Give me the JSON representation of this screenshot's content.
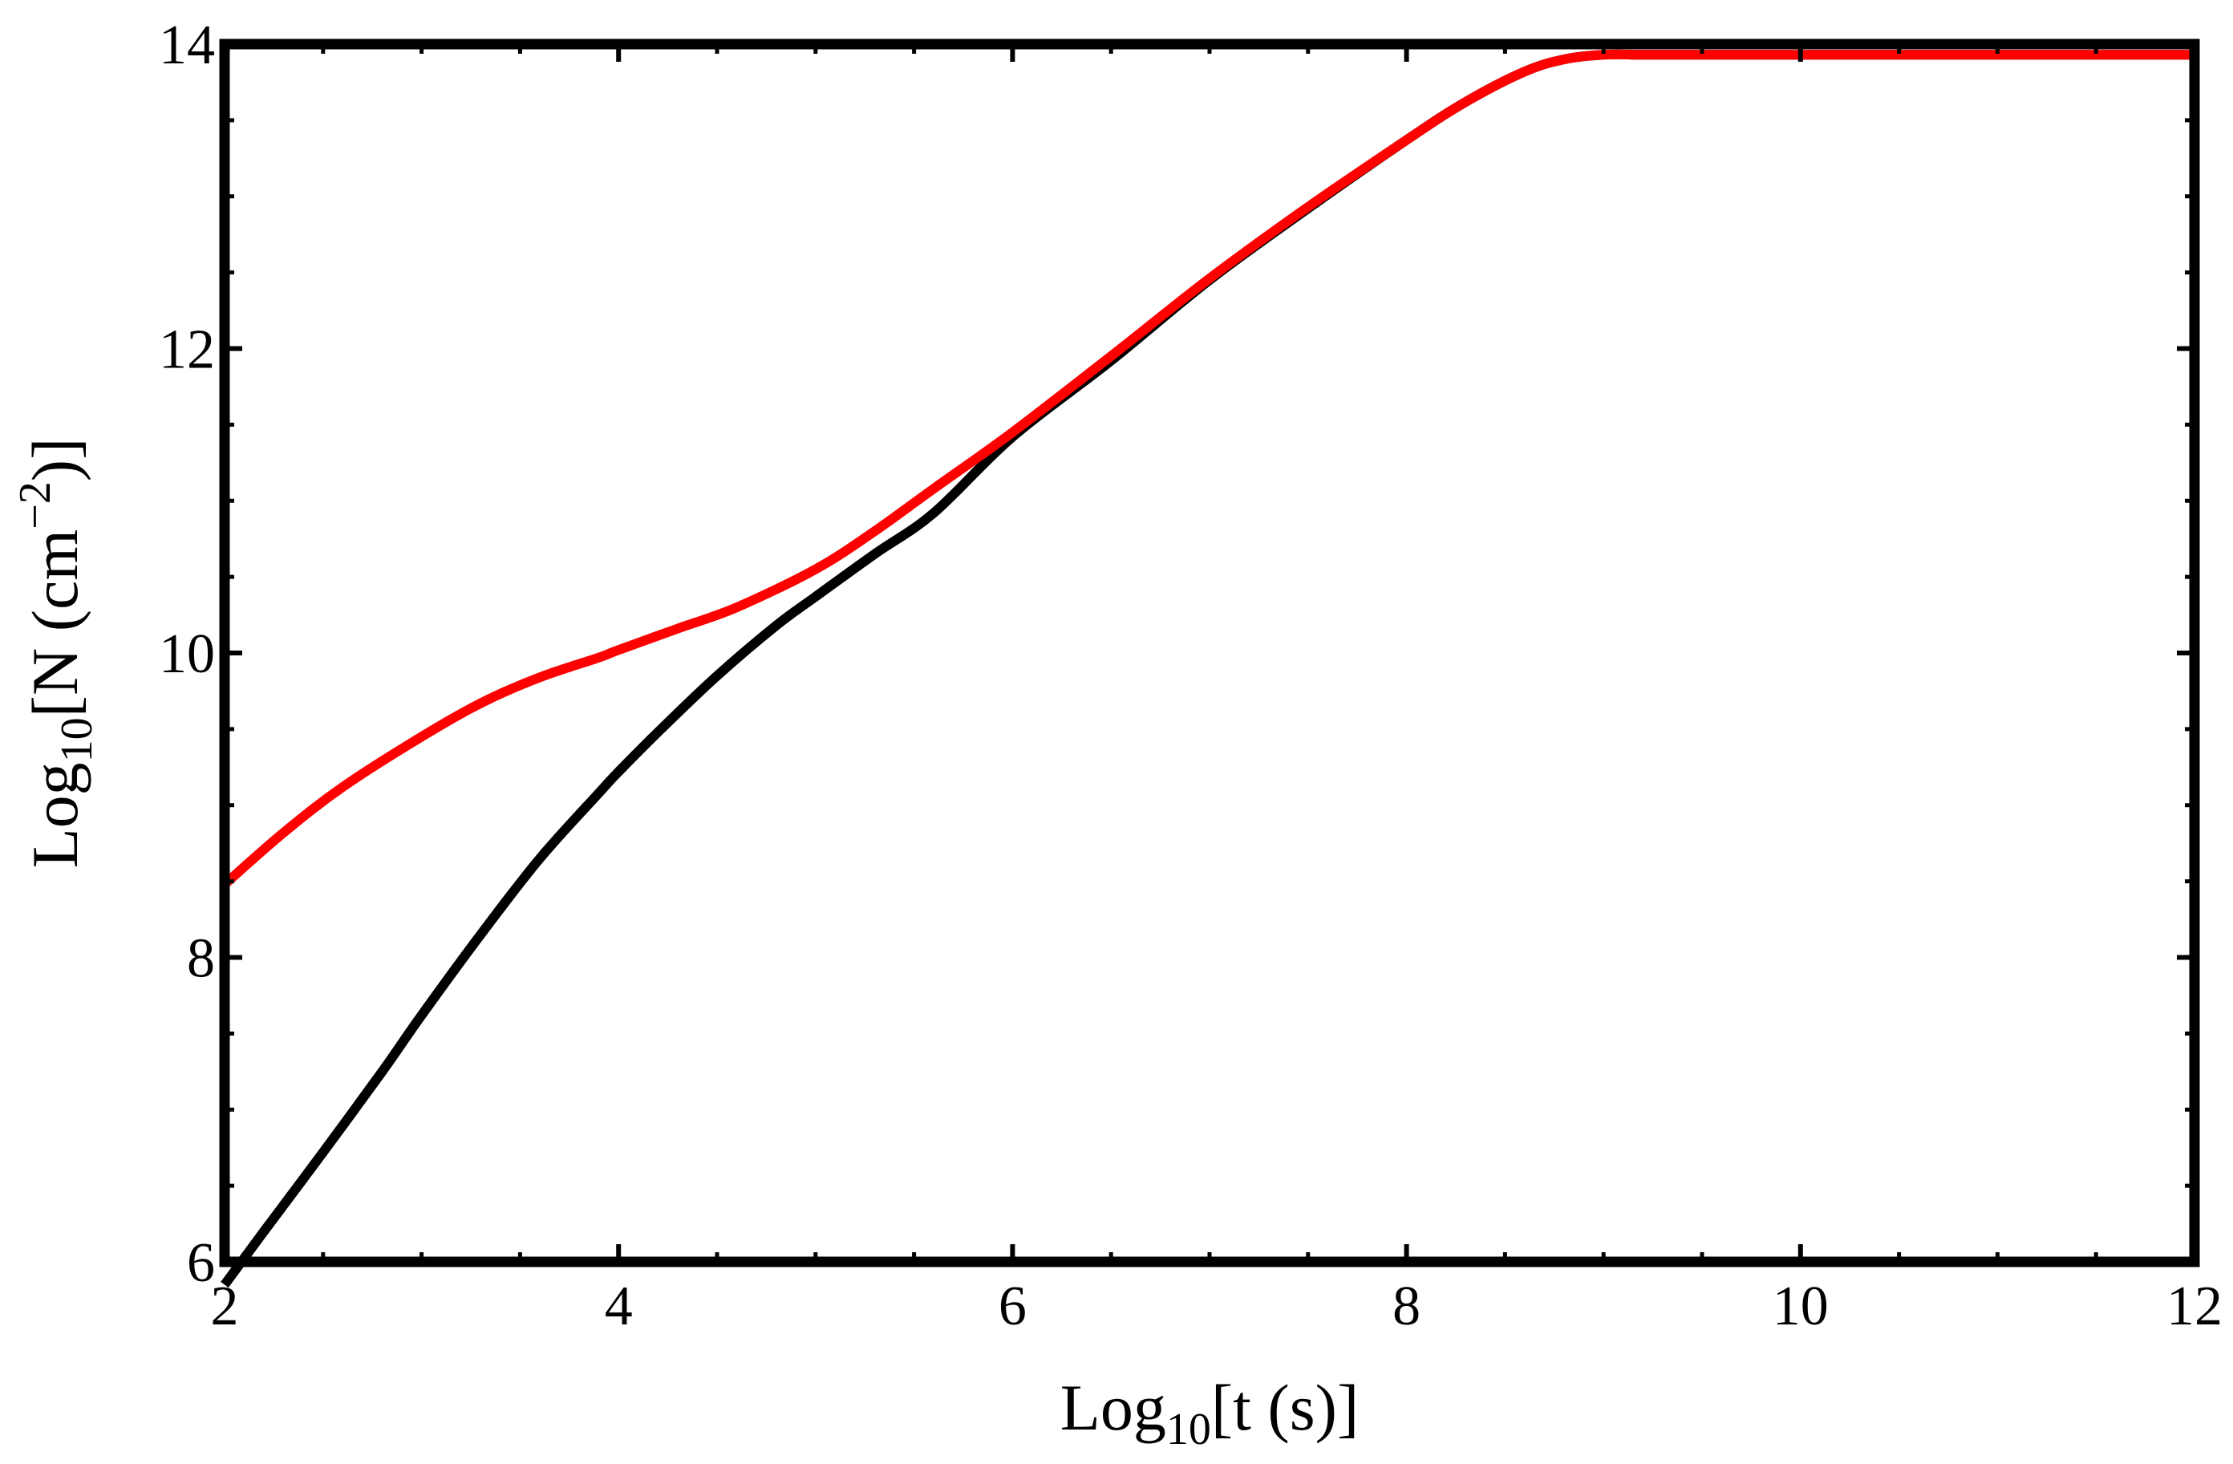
{
  "chart_data": {
    "type": "line",
    "xlabel": {
      "main": "Log",
      "sub": "10",
      "rest": "[t (s)]"
    },
    "ylabel": {
      "main": "Log",
      "sub": "10",
      "rest1": "[N (cm",
      "sup": "−2",
      "rest2": ")]"
    },
    "xlim": [
      2,
      12
    ],
    "ylim": [
      6,
      14
    ],
    "xticks": [
      2,
      4,
      6,
      8,
      10,
      12
    ],
    "yticks": [
      6,
      8,
      10,
      12,
      14
    ],
    "xticks_minor": [
      2.5,
      3,
      3.5,
      4.5,
      5,
      5.5,
      6.5,
      7,
      7.5,
      8.5,
      9,
      9.5,
      10.5,
      11,
      11.5
    ],
    "yticks_minor": [
      6.5,
      7,
      7.5,
      8.5,
      9,
      9.5,
      10.5,
      11,
      11.5,
      12.5,
      13,
      13.5
    ],
    "xtick_labels": [
      "2",
      "4",
      "6",
      "8",
      "10",
      "12"
    ],
    "ytick_labels": [
      "6",
      "8",
      "10",
      "12",
      "14"
    ],
    "grid": false,
    "series": [
      {
        "color": "#000000",
        "x": [
          2.0,
          2.2,
          2.5,
          2.8,
          3.0,
          3.3,
          3.6,
          3.9,
          4.0,
          4.2,
          4.5,
          4.8,
          5.0,
          5.3,
          5.6,
          6.0,
          6.5,
          7.0,
          7.5,
          8.0,
          8.3,
          8.6,
          8.8,
          9.0,
          9.2,
          9.5,
          10.0,
          11.0,
          12.0
        ],
        "y": [
          5.85,
          6.2,
          6.72,
          7.25,
          7.62,
          8.15,
          8.65,
          9.08,
          9.22,
          9.48,
          9.85,
          10.18,
          10.37,
          10.65,
          10.92,
          11.42,
          11.92,
          12.45,
          12.92,
          13.37,
          13.62,
          13.82,
          13.9,
          13.93,
          13.93,
          13.93,
          13.93,
          13.93,
          13.93
        ]
      },
      {
        "color": "#ff0000",
        "x": [
          2.0,
          2.3,
          2.6,
          3.0,
          3.3,
          3.6,
          3.9,
          4.0,
          4.3,
          4.6,
          5.0,
          5.3,
          5.6,
          6.0,
          6.5,
          7.0,
          7.5,
          8.0,
          8.3,
          8.6,
          8.8,
          9.0,
          9.2,
          9.5,
          10.0,
          11.0,
          12.0
        ],
        "y": [
          8.48,
          8.82,
          9.12,
          9.45,
          9.67,
          9.84,
          9.97,
          10.02,
          10.16,
          10.3,
          10.55,
          10.8,
          11.08,
          11.45,
          11.95,
          12.46,
          12.93,
          13.37,
          13.62,
          13.82,
          13.9,
          13.93,
          13.93,
          13.93,
          13.93,
          13.93,
          13.93
        ]
      }
    ]
  }
}
